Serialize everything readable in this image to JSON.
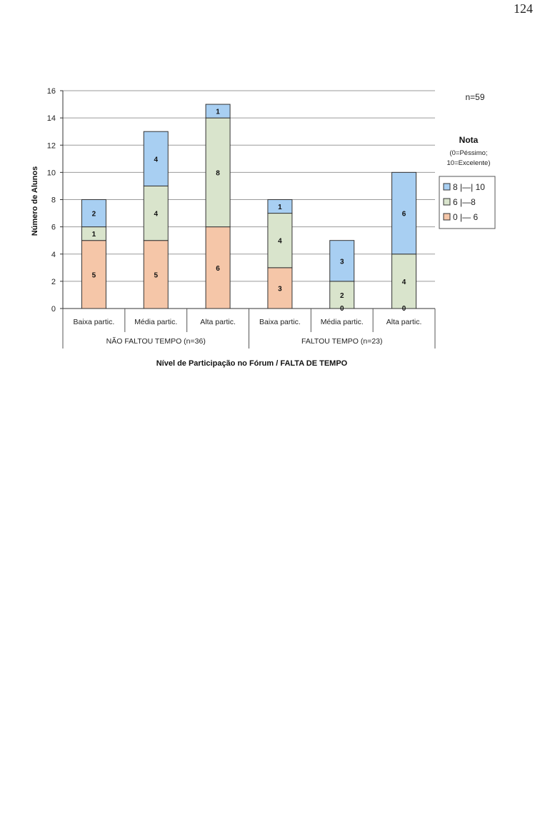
{
  "page": {
    "number": "124"
  },
  "chart_data": {
    "type": "bar",
    "stacked": true,
    "title": "",
    "xlabel": "Nível de Participação no Fórum / FALTA DE TEMPO",
    "ylabel": "Número de Alunos",
    "ylim": [
      0,
      16
    ],
    "yticks": [
      0,
      2,
      4,
      6,
      8,
      10,
      12,
      14,
      16
    ],
    "grid": true,
    "legend_position": "right",
    "annotation": "n=59",
    "legend_title": "Nota",
    "legend_subtitle": [
      "(0=Péssimo;",
      "10=Excelente)"
    ],
    "categories": [
      "Baixa partic.",
      "Média partic.",
      "Alta partic.",
      "Baixa partic.",
      "Média partic.",
      "Alta partic."
    ],
    "groups": [
      {
        "label": "NÃO FALTOU TEMPO (n=36)",
        "span": [
          0,
          2
        ]
      },
      {
        "label": "FALTOU TEMPO (n=23)",
        "span": [
          3,
          5
        ]
      }
    ],
    "series": [
      {
        "name": "0 |— 6",
        "color": "#f5c6a8",
        "values": [
          5,
          5,
          6,
          3,
          0,
          0
        ]
      },
      {
        "name": "6 |—8",
        "color": "#d9e4cc",
        "values": [
          1,
          4,
          8,
          4,
          2,
          4
        ]
      },
      {
        "name": "8 |—| 10",
        "color": "#a8cff2",
        "values": [
          2,
          4,
          1,
          1,
          3,
          6
        ]
      }
    ],
    "legend_order": [
      2,
      1,
      0
    ]
  }
}
